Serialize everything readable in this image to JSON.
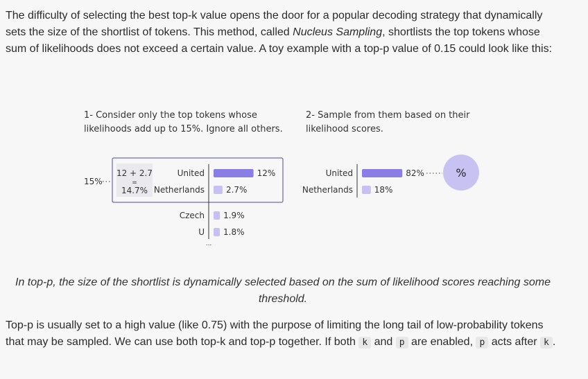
{
  "intro": {
    "part1": "The difficulty of selecting the best top-k value opens the door for a popular decoding strategy that dynamically sets the size of the shortlist of tokens. This method, called ",
    "emph": "Nucleus Sampling",
    "part2": ", shortlists the top tokens whose sum of likelihoods does not exceed a certain value. A toy example with a top-p value of 0.15 could look like this:"
  },
  "step1": {
    "line1": "1- Consider only the top tokens whose",
    "line2": "likelihoods add up to 15%. Ignore all others.",
    "threshold": "15%",
    "sum_line1": "12 + 2.7",
    "sum_eq": "=",
    "sum_result": "14.7%",
    "ellipsis": "...",
    "tokens": [
      {
        "label": "United",
        "value": 12,
        "value_label": "12%"
      },
      {
        "label": "Netherlands",
        "value": 2.7,
        "value_label": "2.7%"
      },
      {
        "label": "Czech",
        "value": 1.9,
        "value_label": "1.9%"
      },
      {
        "label": "U",
        "value": 1.8,
        "value_label": "1.8%"
      }
    ]
  },
  "step2": {
    "line1": "2- Sample from them based on their",
    "line2": "likelihood scores.",
    "tokens": [
      {
        "label": "United",
        "value": 82,
        "value_label": "82%"
      },
      {
        "label": "Netherlands",
        "value": 18,
        "value_label": "18%"
      }
    ],
    "sample_symbol": "%"
  },
  "caption": "In top-p, the size of the shortlist is dynamically selected based on the sum of likelihood scores reaching some threshold.",
  "outro": {
    "part1": "Top-p is usually set to a high value (like 0.75) with the purpose of limiting the long tail of low-probability tokens that may be sampled. We can use both top-k and top-p together. If both ",
    "code_k": "k",
    "part2": " and ",
    "code_p": "p",
    "part3": " are enabled, ",
    "code_p2": "p",
    "part4": " acts after ",
    "code_k2": "k",
    "part5": "."
  },
  "colors": {
    "bar_dark": "#8b7de6",
    "bar_light": "#c7c0f3",
    "box_stroke": "#4a4aa0",
    "circle": "#c8c2f2"
  }
}
